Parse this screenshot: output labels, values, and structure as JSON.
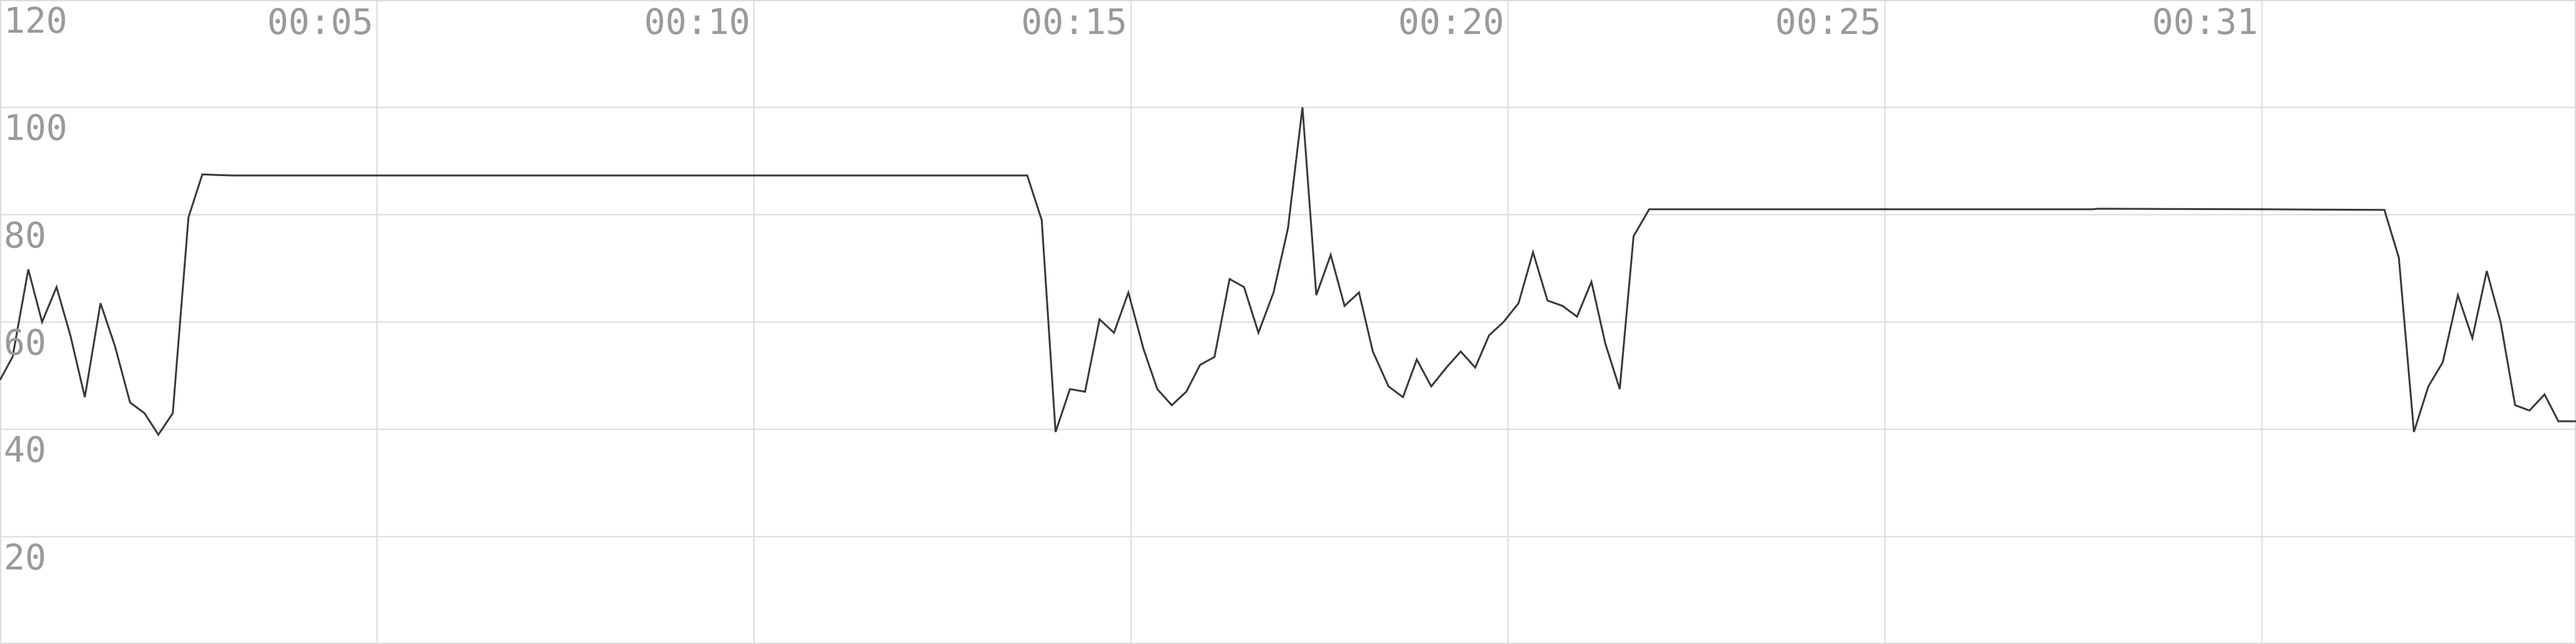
{
  "chart_data": {
    "type": "line",
    "title": "",
    "xlabel": "",
    "ylabel": "",
    "ylim": [
      0,
      120
    ],
    "xlim": [
      0,
      41
    ],
    "grid": true,
    "colors": {
      "line": "#3a3a3a",
      "grid": "#dcdcdc",
      "tick_text": "#9a9a9a"
    },
    "y_ticks": [
      {
        "value": 120,
        "label": "120"
      },
      {
        "value": 100,
        "label": "100"
      },
      {
        "value": 80,
        "label": "80"
      },
      {
        "value": 60,
        "label": "60"
      },
      {
        "value": 40,
        "label": "40"
      },
      {
        "value": 20,
        "label": "20"
      }
    ],
    "x_ticks": [
      {
        "value": 6,
        "label": "00:05"
      },
      {
        "value": 12,
        "label": "00:10"
      },
      {
        "value": 18,
        "label": "00:15"
      },
      {
        "value": 24,
        "label": "00:20"
      },
      {
        "value": 30,
        "label": "00:25"
      },
      {
        "value": 36,
        "label": "00:31"
      }
    ],
    "series": [
      {
        "x": [
          0,
          0.2,
          0.45,
          0.67,
          0.9,
          1.12,
          1.35,
          1.6,
          1.83,
          2.07,
          2.3,
          2.52,
          2.75,
          3.0,
          3.22,
          3.45,
          3.7,
          4.15,
          6.0,
          12.0,
          16.35,
          16.58,
          16.8,
          17.03,
          17.27,
          17.5,
          17.73,
          17.96,
          18.2,
          18.42,
          18.65,
          18.88,
          19.1,
          19.33,
          19.57,
          19.8,
          20.03,
          20.27,
          20.5,
          20.73,
          20.95,
          21.18,
          21.4,
          21.63,
          21.85,
          22.1,
          22.33,
          22.55,
          22.78,
          23.02,
          23.25,
          23.48,
          23.7,
          23.93,
          24.17,
          24.4,
          24.63,
          24.87,
          25.1,
          25.33,
          25.55,
          25.78,
          26.0,
          26.25,
          33.3,
          33.4,
          36.0,
          37.95,
          38.18,
          38.42,
          38.65,
          38.88,
          39.12,
          39.35,
          39.58,
          39.8,
          40.03,
          40.26,
          40.5,
          40.72,
          40.95,
          41.0
        ],
        "y": [
          49.2,
          53.5,
          69.8,
          60.0,
          66.5,
          57.5,
          46.0,
          63.5,
          55.5,
          45.0,
          43.0,
          39.0,
          43.0,
          79.5,
          87.5,
          87.4,
          87.3,
          87.3,
          87.3,
          87.3,
          87.3,
          79.0,
          39.5,
          47.5,
          47.0,
          60.5,
          58.0,
          65.5,
          55.0,
          47.5,
          44.5,
          47.0,
          52.0,
          53.5,
          68.0,
          66.5,
          58.0,
          65.5,
          77.5,
          100.0,
          65.0,
          72.5,
          63.0,
          65.5,
          54.5,
          48.0,
          46.0,
          53.0,
          48.0,
          51.5,
          54.5,
          51.5,
          57.5,
          60.0,
          63.5,
          73.0,
          64.0,
          63.0,
          61.0,
          67.5,
          56.0,
          47.5,
          76.0,
          81.0,
          81.0,
          81.1,
          81.0,
          80.9,
          72.0,
          39.5,
          48.0,
          52.5,
          65.0,
          57.0,
          69.5,
          60.0,
          44.5,
          43.5,
          46.5,
          41.5,
          41.5,
          41.5
        ]
      }
    ]
  }
}
